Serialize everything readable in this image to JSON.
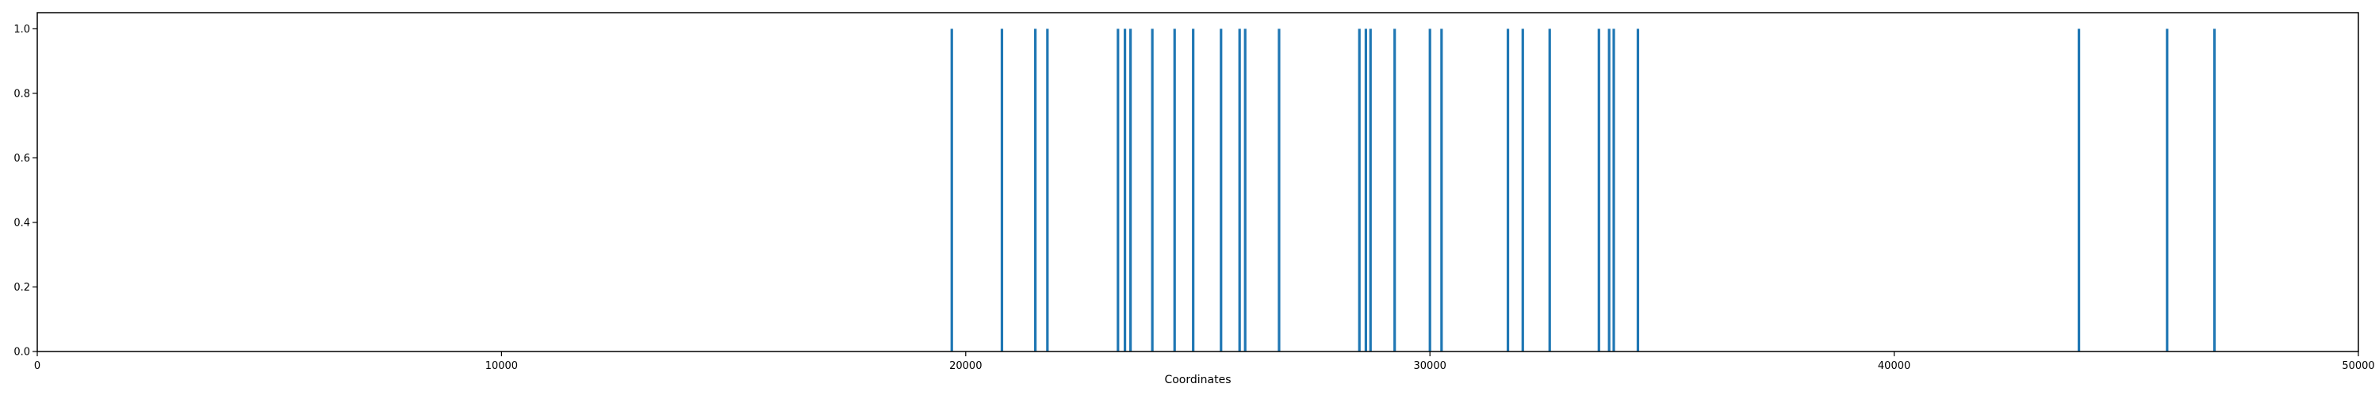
{
  "chart_data": {
    "type": "bar",
    "title": "",
    "xlabel": "Coordinates",
    "ylabel": "",
    "xlim": [
      0,
      50000
    ],
    "ylim": [
      0,
      1.05
    ],
    "x_ticks": [
      0,
      10000,
      20000,
      30000,
      40000,
      50000
    ],
    "x_tick_labels": [
      "0",
      "10000",
      "20000",
      "30000",
      "40000",
      "50000"
    ],
    "y_ticks": [
      0.0,
      0.2,
      0.4,
      0.6,
      0.8,
      1.0
    ],
    "y_tick_labels": [
      "0.0",
      "0.2",
      "0.4",
      "0.6",
      "0.8",
      "1.0"
    ],
    "grid": false,
    "legend": "none",
    "bar_color": "#1f77b4",
    "bars": [
      {
        "x": 19700,
        "y": 1
      },
      {
        "x": 20780,
        "y": 1
      },
      {
        "x": 21500,
        "y": 1
      },
      {
        "x": 21760,
        "y": 1
      },
      {
        "x": 23280,
        "y": 1
      },
      {
        "x": 23430,
        "y": 1
      },
      {
        "x": 23550,
        "y": 1
      },
      {
        "x": 24020,
        "y": 1
      },
      {
        "x": 24500,
        "y": 1
      },
      {
        "x": 24900,
        "y": 1
      },
      {
        "x": 25500,
        "y": 1
      },
      {
        "x": 25900,
        "y": 1
      },
      {
        "x": 26020,
        "y": 1
      },
      {
        "x": 26750,
        "y": 1
      },
      {
        "x": 28480,
        "y": 1
      },
      {
        "x": 28620,
        "y": 1
      },
      {
        "x": 28720,
        "y": 1
      },
      {
        "x": 29240,
        "y": 1
      },
      {
        "x": 30000,
        "y": 1
      },
      {
        "x": 30250,
        "y": 1
      },
      {
        "x": 31680,
        "y": 1
      },
      {
        "x": 32000,
        "y": 1
      },
      {
        "x": 32580,
        "y": 1
      },
      {
        "x": 33640,
        "y": 1
      },
      {
        "x": 33860,
        "y": 1
      },
      {
        "x": 33960,
        "y": 1
      },
      {
        "x": 34480,
        "y": 1
      },
      {
        "x": 43980,
        "y": 1
      },
      {
        "x": 45880,
        "y": 1
      },
      {
        "x": 46900,
        "y": 1
      }
    ]
  }
}
